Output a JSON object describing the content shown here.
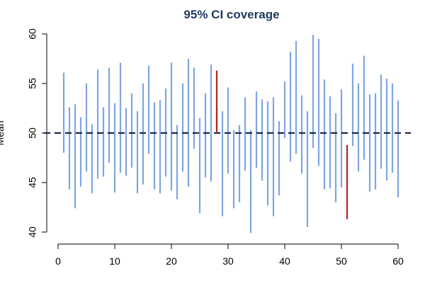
{
  "chart_data": {
    "type": "interval",
    "title": "95% CI coverage",
    "xlabel": "",
    "ylabel": "Mean",
    "xlim": [
      0,
      60
    ],
    "ylim": [
      40,
      60
    ],
    "x_ticks": [
      "0",
      "10",
      "20",
      "30",
      "40",
      "50",
      "60"
    ],
    "y_ticks": [
      "40",
      "45",
      "50",
      "55",
      "60"
    ],
    "reference_line": 50,
    "grid": false,
    "colors": {
      "title": "#1f3a5f",
      "covers": "#7fa6e0",
      "misses": "#b22222",
      "reference": "#1b2a4a",
      "axis": "#000000"
    },
    "intervals": [
      {
        "x": 1,
        "low": 48.0,
        "high": 56.1
      },
      {
        "x": 2,
        "low": 44.3,
        "high": 52.6
      },
      {
        "x": 3,
        "low": 42.4,
        "high": 52.9
      },
      {
        "x": 4,
        "low": 44.6,
        "high": 51.6
      },
      {
        "x": 5,
        "low": 46.1,
        "high": 55.0
      },
      {
        "x": 6,
        "low": 43.9,
        "high": 50.9
      },
      {
        "x": 7,
        "low": 45.4,
        "high": 56.4
      },
      {
        "x": 8,
        "low": 45.6,
        "high": 52.6
      },
      {
        "x": 9,
        "low": 47.0,
        "high": 56.6
      },
      {
        "x": 10,
        "low": 44.0,
        "high": 53.0
      },
      {
        "x": 11,
        "low": 46.0,
        "high": 57.1
      },
      {
        "x": 12,
        "low": 45.7,
        "high": 52.5
      },
      {
        "x": 13,
        "low": 46.5,
        "high": 54.0
      },
      {
        "x": 14,
        "low": 43.9,
        "high": 52.2
      },
      {
        "x": 15,
        "low": 44.8,
        "high": 55.0
      },
      {
        "x": 16,
        "low": 47.9,
        "high": 56.8
      },
      {
        "x": 17,
        "low": 44.3,
        "high": 53.1
      },
      {
        "x": 18,
        "low": 43.9,
        "high": 53.3
      },
      {
        "x": 19,
        "low": 45.6,
        "high": 54.5
      },
      {
        "x": 20,
        "low": 44.2,
        "high": 57.1
      },
      {
        "x": 21,
        "low": 43.3,
        "high": 50.8
      },
      {
        "x": 22,
        "low": 46.1,
        "high": 55.0
      },
      {
        "x": 23,
        "low": 44.6,
        "high": 57.5
      },
      {
        "x": 24,
        "low": 48.4,
        "high": 56.6
      },
      {
        "x": 25,
        "low": 41.9,
        "high": 51.5
      },
      {
        "x": 26,
        "low": 45.5,
        "high": 54.0
      },
      {
        "x": 27,
        "low": 45.1,
        "high": 56.9
      },
      {
        "x": 28,
        "low": 50.1,
        "high": 56.3,
        "missed": true
      },
      {
        "x": 29,
        "low": 41.6,
        "high": 52.2
      },
      {
        "x": 30,
        "low": 45.9,
        "high": 54.6
      },
      {
        "x": 31,
        "low": 42.4,
        "high": 50.3
      },
      {
        "x": 32,
        "low": 43.0,
        "high": 50.8
      },
      {
        "x": 33,
        "low": 46.2,
        "high": 53.6
      },
      {
        "x": 34,
        "low": 39.9,
        "high": 50.3
      },
      {
        "x": 35,
        "low": 46.5,
        "high": 54.2
      },
      {
        "x": 36,
        "low": 45.2,
        "high": 53.4
      },
      {
        "x": 37,
        "low": 42.7,
        "high": 53.2
      },
      {
        "x": 38,
        "low": 41.6,
        "high": 53.6
      },
      {
        "x": 39,
        "low": 43.7,
        "high": 51.2
      },
      {
        "x": 40,
        "low": 49.5,
        "high": 55.2
      },
      {
        "x": 41,
        "low": 47.1,
        "high": 58.2
      },
      {
        "x": 42,
        "low": 47.9,
        "high": 59.3
      },
      {
        "x": 43,
        "low": 45.9,
        "high": 53.8
      },
      {
        "x": 44,
        "low": 40.5,
        "high": 52.2
      },
      {
        "x": 45,
        "low": 48.5,
        "high": 59.9
      },
      {
        "x": 46,
        "low": 46.7,
        "high": 59.5
      },
      {
        "x": 47,
        "low": 44.3,
        "high": 55.4
      },
      {
        "x": 48,
        "low": 44.4,
        "high": 53.7
      },
      {
        "x": 49,
        "low": 43.0,
        "high": 52.0
      },
      {
        "x": 50,
        "low": 44.5,
        "high": 54.4
      },
      {
        "x": 51,
        "low": 41.3,
        "high": 48.8,
        "missed": true
      },
      {
        "x": 52,
        "low": 48.7,
        "high": 57.0
      },
      {
        "x": 53,
        "low": 46.1,
        "high": 55.0
      },
      {
        "x": 54,
        "low": 47.3,
        "high": 57.8
      },
      {
        "x": 55,
        "low": 44.1,
        "high": 53.9
      },
      {
        "x": 56,
        "low": 44.3,
        "high": 54.0
      },
      {
        "x": 57,
        "low": 46.4,
        "high": 55.9
      },
      {
        "x": 58,
        "low": 45.2,
        "high": 55.5
      },
      {
        "x": 59,
        "low": 46.0,
        "high": 55.0
      },
      {
        "x": 60,
        "low": 43.5,
        "high": 53.3
      }
    ]
  }
}
